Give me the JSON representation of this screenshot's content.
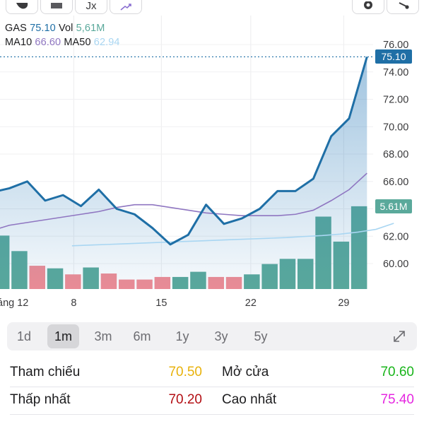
{
  "toolbar": {
    "buttons": [
      {
        "name": "hand-icon"
      },
      {
        "name": "layout-icon"
      },
      {
        "name": "function-icon",
        "label": "Jx"
      },
      {
        "name": "trend-icon"
      },
      {
        "name": "settings-icon"
      },
      {
        "name": "share-icon"
      }
    ]
  },
  "legend": {
    "symbol": "GAS",
    "price": "75.10",
    "vol_label": "Vol",
    "vol_value": "5,61M",
    "ma10_label": "MA10",
    "ma10_value": "66.60",
    "ma50_label": "MA50",
    "ma50_value": "62.94"
  },
  "colors": {
    "price_line": "#1f6fa6",
    "ma10": "#8f76c1",
    "ma50": "#a9d6f2",
    "vol_up": "#5aa99b",
    "vol_down": "#f08c94",
    "price_tag": "#1f6fa6",
    "vol_tag": "#5aa99b",
    "yellow": "#e8b20c",
    "red": "#b30f14",
    "green": "#19b51b",
    "magenta": "#e528e0"
  },
  "tags": {
    "price": "75.10",
    "volume": "5.61M"
  },
  "chart_data": {
    "type": "line",
    "y_ticks": [
      "76.00",
      "74.00",
      "72.00",
      "70.00",
      "68.00",
      "66.00",
      "64.00",
      "62.00",
      "60.00"
    ],
    "y_tick_values": [
      76,
      74,
      72,
      70,
      68,
      66,
      64,
      62,
      60
    ],
    "ylim": [
      58.2,
      76.6
    ],
    "x_tick_labels": [
      "áng 12",
      "8",
      "15",
      "22",
      "29"
    ],
    "x_tick_index": [
      -0.15,
      4.6,
      9.5,
      14.5,
      19.7
    ],
    "close": [
      65.2,
      65.5,
      66.0,
      64.6,
      65.0,
      64.2,
      65.4,
      64.0,
      63.6,
      62.6,
      61.4,
      62.1,
      64.3,
      62.9,
      63.3,
      64.0,
      65.3,
      65.3,
      66.2,
      69.3,
      70.6,
      75.1
    ],
    "ma10": [
      62.4,
      62.8,
      63.0,
      63.2,
      63.4,
      63.6,
      63.8,
      64.1,
      64.3,
      64.3,
      64.1,
      63.9,
      63.7,
      63.6,
      63.5,
      63.5,
      63.5,
      63.6,
      63.9,
      64.6,
      65.4,
      66.6
    ],
    "ma50_start_index": 4.5,
    "ma50": [
      61.3,
      61.35,
      61.4,
      61.45,
      61.5,
      61.55,
      61.6,
      61.65,
      61.7,
      61.75,
      61.8,
      61.85,
      61.9,
      61.98,
      62.05,
      62.15,
      62.3,
      62.5,
      62.94
    ],
    "volume_pct": [
      0.62,
      0.44,
      0.27,
      0.24,
      0.17,
      0.25,
      0.18,
      0.11,
      0.11,
      0.14,
      0.14,
      0.2,
      0.14,
      0.14,
      0.17,
      0.29,
      0.35,
      0.35,
      0.84,
      0.55,
      0.96
    ],
    "volume_up": [
      true,
      true,
      false,
      true,
      false,
      true,
      false,
      false,
      false,
      false,
      true,
      true,
      false,
      false,
      true,
      true,
      true,
      true,
      true,
      true,
      true
    ]
  },
  "timeframes": [
    {
      "label": "1d",
      "active": false
    },
    {
      "label": "1m",
      "active": true
    },
    {
      "label": "3m",
      "active": false
    },
    {
      "label": "6m",
      "active": false
    },
    {
      "label": "1y",
      "active": false
    },
    {
      "label": "3y",
      "active": false
    },
    {
      "label": "5y",
      "active": false
    }
  ],
  "stats": {
    "reference_label": "Tham chiếu",
    "reference_value": "70.50",
    "open_label": "Mở cửa",
    "open_value": "70.60",
    "low_label": "Thấp nhất",
    "low_value": "70.20",
    "high_label": "Cao nhất",
    "high_value": "75.40"
  }
}
